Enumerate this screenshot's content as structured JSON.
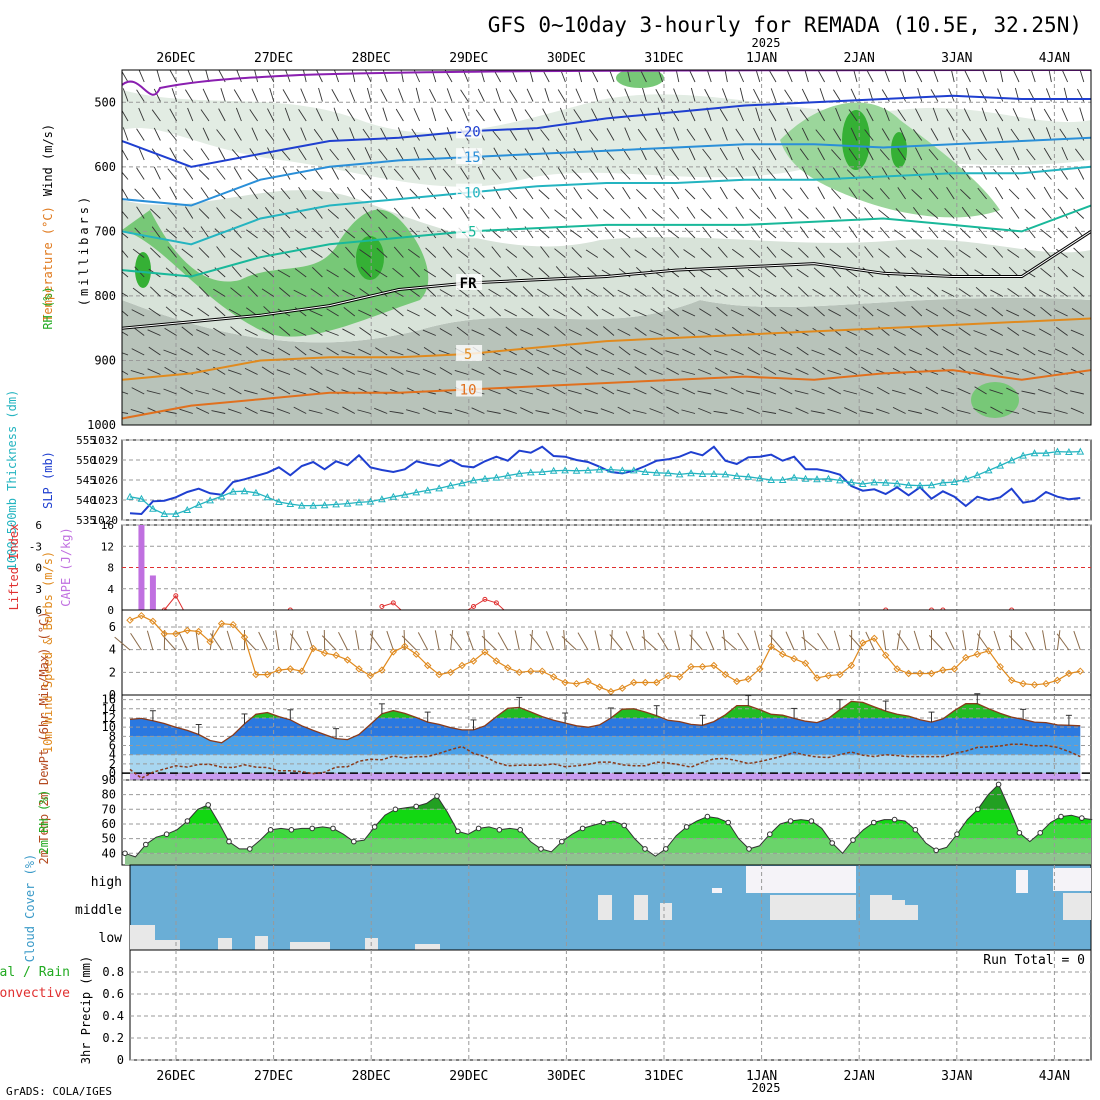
{
  "title": "GFS 0~10day 3-hourly for REMADA (10.5E, 32.25N)",
  "year": "2025",
  "credit": "GrADS: COLA/IGES",
  "dates": [
    "26DEC",
    "27DEC",
    "28DEC",
    "29DEC",
    "30DEC",
    "31DEC",
    "1JAN",
    "2JAN",
    "3JAN",
    "4JAN"
  ],
  "colors": {
    "blue": "#1f3fd0",
    "cyan": "#24b4c0",
    "green": "#22bb22",
    "orange": "#e08a1e",
    "purple": "#8a1fb0",
    "red": "#e03030",
    "sky": "#6aaed6",
    "gray": "#b9c4bb"
  },
  "chart_data": [
    {
      "type": "heatmap",
      "name": "upper_air",
      "ylabel_parts": [
        "Wind (m/s)",
        "Temperature (°C)",
        "RH (%)"
      ],
      "ylabel_unit": "(millibars)",
      "yticks": [
        500,
        600,
        700,
        800,
        900,
        1000
      ],
      "ylim": [
        450,
        1000
      ],
      "freezing_label": "FR",
      "isotherms": [
        {
          "label": "-20",
          "value": -20,
          "pressure": [
            560,
            600,
            580,
            560,
            555,
            545,
            540,
            525,
            515,
            505,
            500,
            495,
            490,
            495,
            495
          ]
        },
        {
          "label": "-15",
          "value": -15,
          "pressure": [
            650,
            660,
            620,
            600,
            590,
            585,
            580,
            575,
            570,
            565,
            565,
            570,
            565,
            560,
            555
          ]
        },
        {
          "label": "-10",
          "value": -10,
          "pressure": [
            700,
            720,
            680,
            660,
            650,
            640,
            630,
            625,
            625,
            620,
            620,
            615,
            610,
            610,
            600
          ]
        },
        {
          "label": "-5",
          "value": -5,
          "pressure": [
            760,
            770,
            740,
            720,
            710,
            700,
            695,
            690,
            690,
            690,
            685,
            680,
            690,
            700,
            660
          ]
        },
        {
          "label": "FR",
          "value": 0,
          "pressure": [
            850,
            840,
            830,
            815,
            790,
            780,
            775,
            770,
            760,
            755,
            750,
            765,
            770,
            770,
            700
          ]
        },
        {
          "label": "5",
          "value": 5,
          "pressure": [
            930,
            920,
            900,
            895,
            895,
            890,
            880,
            870,
            865,
            860,
            855,
            850,
            845,
            840,
            835
          ]
        },
        {
          "label": "10",
          "value": 10,
          "pressure": [
            990,
            970,
            960,
            950,
            950,
            945,
            940,
            935,
            930,
            925,
            930,
            920,
            915,
            930,
            915
          ]
        }
      ],
      "contour_labels": [
        "-20",
        "-20",
        "-15",
        "-10",
        "-5",
        "FR",
        "FR",
        "FR",
        "5",
        "5",
        "10"
      ]
    },
    {
      "type": "line",
      "name": "slp_thickness",
      "ylabel_left": "1000-500mb Thickness (dm)",
      "ylabel_right": "SLP (mb)",
      "yticks_left": [
        535,
        540,
        545,
        550,
        555
      ],
      "yticks_right": [
        1020,
        1023,
        1026,
        1029,
        1032
      ],
      "series": [
        {
          "name": "SLP (mb)",
          "axis": "right",
          "values": [
            1021.0,
            1020.9,
            1022.8,
            1022.9,
            1023.4,
            1024.2,
            1024.7,
            1024.0,
            1023.8,
            1025.7,
            1026.1,
            1026.6,
            1027.1,
            1027.9,
            1026.7,
            1028.1,
            1028.7,
            1027.6,
            1028.8,
            1028.2,
            1029.7,
            1027.9,
            1027.5,
            1027.2,
            1027.6,
            1028.8,
            1028.4,
            1028.1,
            1029.0,
            1028.1,
            1027.9,
            1028.8,
            1029.5,
            1028.9,
            1030.4,
            1030.1,
            1031.0,
            1029.6,
            1029.5,
            1029.0,
            1028.7,
            1028.0,
            1027.2,
            1027.0,
            1027.4,
            1028.1,
            1028.9,
            1029.1,
            1029.5,
            1030.2,
            1029.7,
            1031.0,
            1028.9,
            1028.4,
            1029.4,
            1029.5,
            1029.8,
            1028.9,
            1029.5,
            1027.6,
            1027.6,
            1027.3,
            1026.8,
            1025.1,
            1024.4,
            1024.6,
            1023.9,
            1024.9,
            1023.7,
            1024.9,
            1023.2,
            1024.3,
            1023.5,
            1022.1,
            1023.5,
            1023.0,
            1023.4,
            1024.7,
            1022.6,
            1022.9,
            1024.2,
            1023.5,
            1023.1,
            1023.3
          ]
        },
        {
          "name": "1000-500mb Thickness (dm)",
          "axis": "left",
          "values": [
            540.8,
            540.3,
            537.8,
            536.5,
            536.5,
            537.5,
            538.8,
            539.9,
            540.9,
            542.1,
            542.2,
            541.8,
            540.7,
            539.5,
            539.0,
            538.6,
            538.6,
            538.7,
            538.9,
            539.1,
            539.4,
            539.6,
            540.2,
            540.8,
            541.3,
            541.9,
            542.4,
            542.9,
            543.6,
            544.2,
            544.9,
            545.3,
            545.6,
            546.1,
            546.6,
            546.9,
            547.0,
            547.3,
            547.4,
            547.3,
            547.4,
            547.6,
            547.6,
            547.4,
            547.4,
            547.0,
            546.8,
            546.7,
            546.4,
            546.7,
            546.5,
            546.5,
            546.4,
            546.0,
            545.8,
            545.4,
            545.0,
            545.0,
            545.6,
            545.3,
            545.2,
            545.3,
            544.9,
            544.4,
            544.0,
            544.4,
            544.3,
            544.1,
            543.7,
            543.6,
            543.7,
            544.3,
            544.5,
            545.2,
            546.2,
            547.4,
            548.6,
            549.9,
            551.1,
            551.7,
            551.7,
            552.1,
            552.0,
            552.1
          ]
        }
      ]
    },
    {
      "type": "bar",
      "name": "cape_li",
      "ylabel_left": "Lifted Index",
      "ylabel_right": "CAPE (J/kg)",
      "yticks_left": [
        -6,
        -3,
        0,
        3,
        6
      ],
      "yticks_right": [
        0,
        4,
        8,
        12,
        16
      ],
      "series": [
        {
          "name": "CAPE (J/kg)",
          "indices": [
            1,
            2
          ],
          "values": [
            16.0,
            6.5
          ]
        },
        {
          "name": "Lifted Index",
          "values": [
            null,
            null,
            null,
            6,
            4.0,
            7,
            8,
            8,
            8,
            8,
            8,
            8,
            8,
            6.5,
            6.0,
            7,
            8,
            8,
            8,
            8,
            8,
            8,
            5.5,
            5.0,
            6.5,
            6.5,
            7.5,
            7.5,
            7.5,
            6.5,
            5.5,
            4.5,
            5.0,
            6.5,
            8,
            8,
            8,
            8,
            8,
            8,
            8,
            8,
            8,
            8,
            8,
            8,
            8,
            8,
            8,
            8,
            8,
            8,
            8,
            8,
            8,
            8,
            8,
            8,
            8,
            8,
            8,
            8,
            8,
            8,
            8,
            6.5,
            6.0,
            6.5,
            8,
            8,
            6,
            6.0,
            6.5,
            7.0,
            6.5,
            6.5,
            6.5,
            6.0,
            8,
            8,
            8,
            8,
            8,
            8
          ]
        }
      ]
    },
    {
      "type": "line",
      "name": "wind10m",
      "ylabel": "10m Wind Speed & Barbs (m/s)",
      "yticks": [
        0,
        2,
        4,
        6
      ],
      "values": [
        6.6,
        7.0,
        6.5,
        5.4,
        5.4,
        5.7,
        5.6,
        4.7,
        6.3,
        6.2,
        5.1,
        1.8,
        1.8,
        2.2,
        2.3,
        2.1,
        4.1,
        3.7,
        3.5,
        3.1,
        2.3,
        1.7,
        2.2,
        3.8,
        4.3,
        3.6,
        2.6,
        1.8,
        2.0,
        2.6,
        3.0,
        3.8,
        3.0,
        2.4,
        2.0,
        2.1,
        2.1,
        1.6,
        1.1,
        1.0,
        1.2,
        0.7,
        0.3,
        0.6,
        1.1,
        1.1,
        1.1,
        1.7,
        1.6,
        2.5,
        2.5,
        2.6,
        1.8,
        1.2,
        1.4,
        2.3,
        4.3,
        3.6,
        3.2,
        2.8,
        1.5,
        1.7,
        1.8,
        2.6,
        4.6,
        5.0,
        3.5,
        2.3,
        1.9,
        1.9,
        1.9,
        2.2,
        2.3,
        3.3,
        3.6,
        3.9,
        2.5,
        1.3,
        1.0,
        0.9,
        1.0,
        1.3,
        1.9,
        2.1
      ]
    },
    {
      "type": "area",
      "name": "temp2m",
      "ylabel": "2m Temp 2m DewPt (6hr Min/Max) (°C)",
      "yticks": [
        0,
        2,
        4,
        6,
        8,
        10,
        12,
        14,
        16
      ],
      "series": [
        {
          "name": "2m Temp",
          "values": [
            11.7,
            11.9,
            11.4,
            10.8,
            10.0,
            9.3,
            8.4,
            7.1,
            6.6,
            8.3,
            10.7,
            12.8,
            13.2,
            12.3,
            11.6,
            10.3,
            9.3,
            8.4,
            7.5,
            7.3,
            8.4,
            10.6,
            12.9,
            13.6,
            13.0,
            12.1,
            11.1,
            10.6,
            9.9,
            9.4,
            9.4,
            10.3,
            12.3,
            14.1,
            14.3,
            13.3,
            12.3,
            11.5,
            10.9,
            10.3,
            10.0,
            10.5,
            12.0,
            13.9,
            14.0,
            13.3,
            12.5,
            11.5,
            11.2,
            10.6,
            10.4,
            11.2,
            12.7,
            14.7,
            14.7,
            13.8,
            12.8,
            12.6,
            11.9,
            11.3,
            11.0,
            11.9,
            13.8,
            15.6,
            15.4,
            14.4,
            13.5,
            12.8,
            12.4,
            11.6,
            11.1,
            11.8,
            13.6,
            15.1,
            15.1,
            14.0,
            13.0,
            12.2,
            11.7,
            11.1,
            11.0,
            10.5,
            10.4,
            10.3
          ]
        },
        {
          "name": "2m DewPt",
          "values": [
            0.8,
            -1.1,
            0.2,
            0.9,
            1.6,
            1.3,
            1.9,
            1.9,
            1.3,
            1.2,
            1.8,
            1.3,
            1.2,
            0.5,
            0.5,
            0.3,
            -0.1,
            0.2,
            1.3,
            1.4,
            2.6,
            3.0,
            2.9,
            3.7,
            3.3,
            3.6,
            3.6,
            4.3,
            5.1,
            5.8,
            4.3,
            3.6,
            2.3,
            1.6,
            1.7,
            1.7,
            1.7,
            2.0,
            1.4,
            1.6,
            1.9,
            2.4,
            2.4,
            1.8,
            1.6,
            1.6,
            2.4,
            2.2,
            1.8,
            1.3,
            2.3,
            3.1,
            3.2,
            2.7,
            2.1,
            2.5,
            3.1,
            3.7,
            4.5,
            3.9,
            3.5,
            3.4,
            4.0,
            4.6,
            3.9,
            3.6,
            4.0,
            3.8,
            3.6,
            3.6,
            3.6,
            3.6,
            4.3,
            4.8,
            5.6,
            5.7,
            5.9,
            6.3,
            6.3,
            5.9,
            6.0,
            5.6,
            4.7,
            3.6
          ]
        }
      ]
    },
    {
      "type": "area",
      "name": "rh2m",
      "ylabel": "2m RH (%)",
      "yticks": [
        40,
        50,
        60,
        70,
        80,
        90
      ],
      "values": [
        40.0,
        37.5,
        46.0,
        51.0,
        53.0,
        56.0,
        62.0,
        70.0,
        73.0,
        61.0,
        48.0,
        43.0,
        43.0,
        49.0,
        56.0,
        57.0,
        56.0,
        57.0,
        57.0,
        58.0,
        57.0,
        53.0,
        48.0,
        49.0,
        58.0,
        66.0,
        70.0,
        71.0,
        72.0,
        74.0,
        79.0,
        68.0,
        55.0,
        53.0,
        57.0,
        58.0,
        56.0,
        57.0,
        56.0,
        48.0,
        43.0,
        41.0,
        48.0,
        53.0,
        57.0,
        59.0,
        61.0,
        62.0,
        59.0,
        50.0,
        43.0,
        38.0,
        43.0,
        52.0,
        58.0,
        62.0,
        65.0,
        64.0,
        61.0,
        50.0,
        43.0,
        45.0,
        53.0,
        60.0,
        62.0,
        63.0,
        62.0,
        57.0,
        47.0,
        40.0,
        49.0,
        56.0,
        61.0,
        63.0,
        63.0,
        62.0,
        56.0,
        47.0,
        42.0,
        44.0,
        53.0,
        63.0,
        70.0,
        80.0,
        87.0,
        71.0,
        54.0,
        48.0,
        54.0,
        61.0,
        65.0,
        66.0,
        64.0,
        63.0
      ]
    },
    {
      "type": "bar",
      "name": "cloud_cover",
      "ylabel": "Cloud Cover (%)",
      "ytick_labels": [
        "high",
        "middle",
        "low"
      ],
      "low_labels": [
        "low"
      ]
    },
    {
      "type": "bar",
      "name": "precip",
      "ylabel": "3hr Precip (mm)",
      "legend": [
        "Total / Rain",
        "Convective"
      ],
      "run_total": "Run Total = 0",
      "yticks": [
        0,
        0.2,
        0.4,
        0.6,
        0.8
      ],
      "ylim": [
        0,
        1.0
      ],
      "values": []
    }
  ]
}
